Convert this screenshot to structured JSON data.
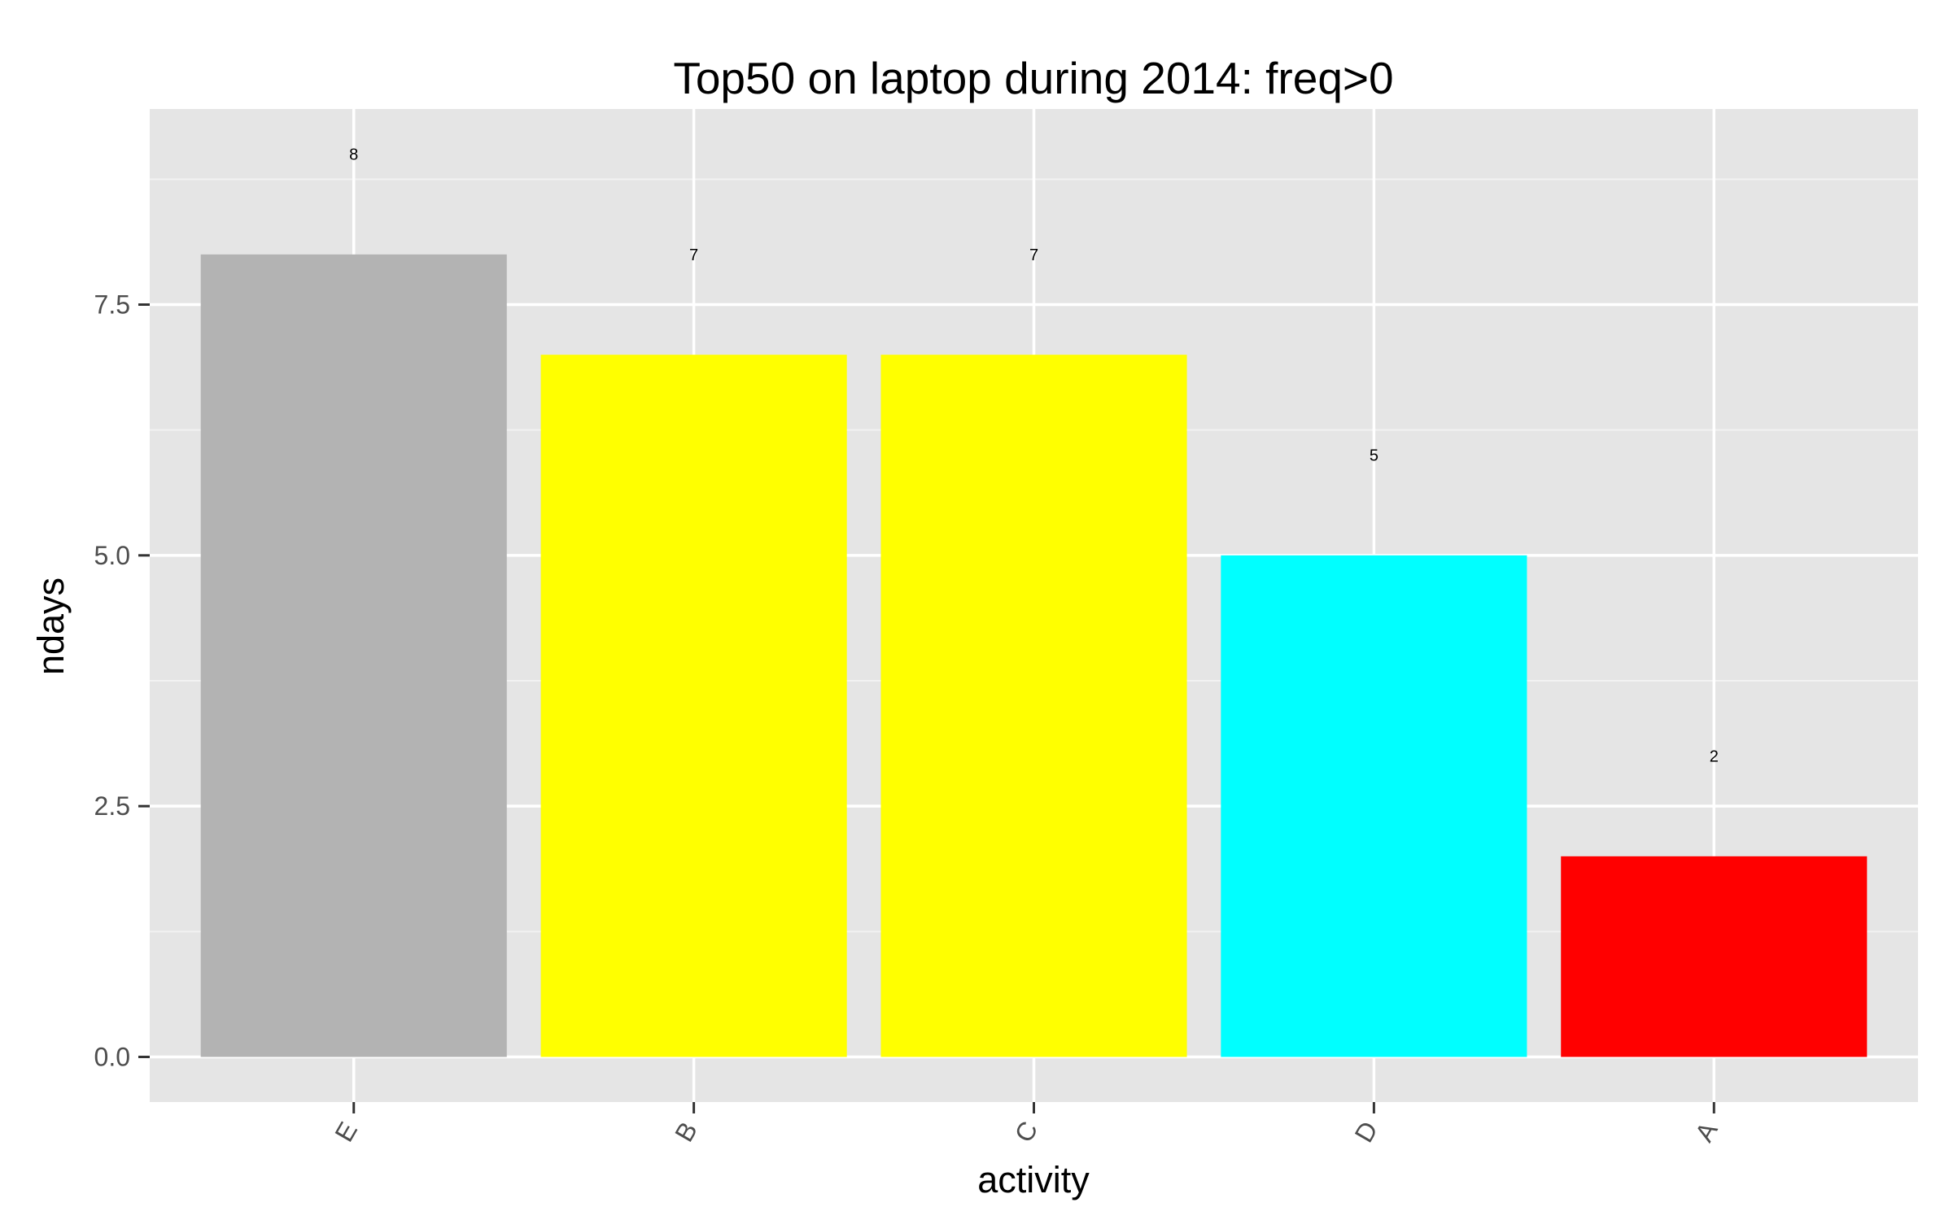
{
  "chart_data": {
    "type": "bar",
    "title": "Top50 on laptop during 2014: freq>0",
    "xlabel": "activity",
    "ylabel": "ndays",
    "categories": [
      "E",
      "B",
      "C",
      "D",
      "A"
    ],
    "values": [
      8,
      7,
      7,
      5,
      2
    ],
    "data_labels": [
      "8",
      "7",
      "7",
      "5",
      "2"
    ],
    "bar_colors": [
      "#b3b3b3",
      "#ffff00",
      "#ffff00",
      "#00ffff",
      "#ff0000"
    ],
    "ylim": [
      -0.45,
      9.45
    ],
    "yticks": [
      0,
      2.5,
      5,
      7.5
    ],
    "ytick_labels": [
      "0.0",
      "2.5",
      "5.0",
      "7.5"
    ],
    "grid": true,
    "legend": "none"
  }
}
